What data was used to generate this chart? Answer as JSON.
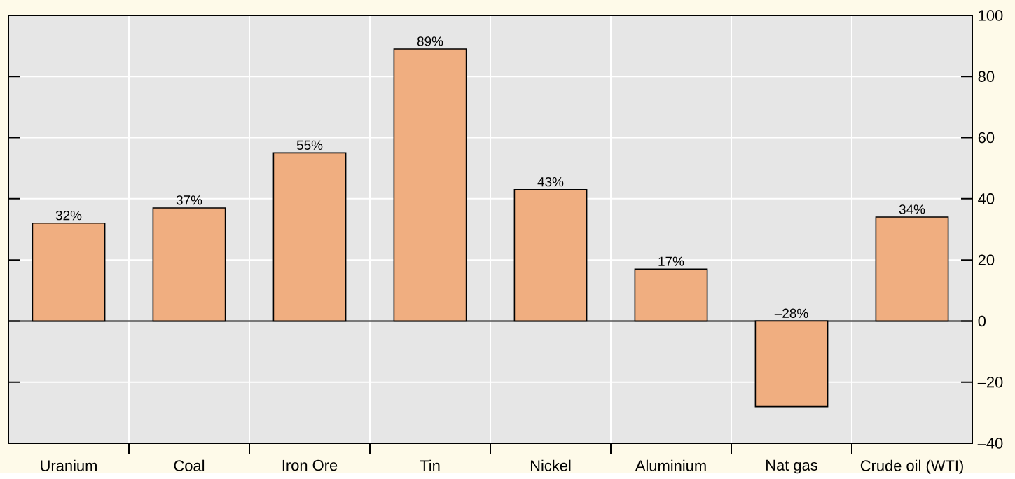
{
  "chart_data": {
    "type": "bar",
    "categories": [
      "Uranium",
      "Coal",
      "Iron Ore",
      "Tin",
      "Nickel",
      "Aluminium",
      "Nat gas",
      "Crude oil (WTI)"
    ],
    "values": [
      32,
      37,
      55,
      89,
      43,
      17,
      -28,
      34
    ],
    "value_labels": [
      "32%",
      "37%",
      "55%",
      "89%",
      "43%",
      "17%",
      "–28%",
      "34%"
    ],
    "color": "#f0ae80",
    "ylim": [
      -40,
      100
    ],
    "yticks": [
      {
        "value": -40,
        "label": "–40"
      },
      {
        "value": -20,
        "label": "–20"
      },
      0,
      20,
      40,
      60,
      80,
      100
    ],
    "grid": true
  }
}
